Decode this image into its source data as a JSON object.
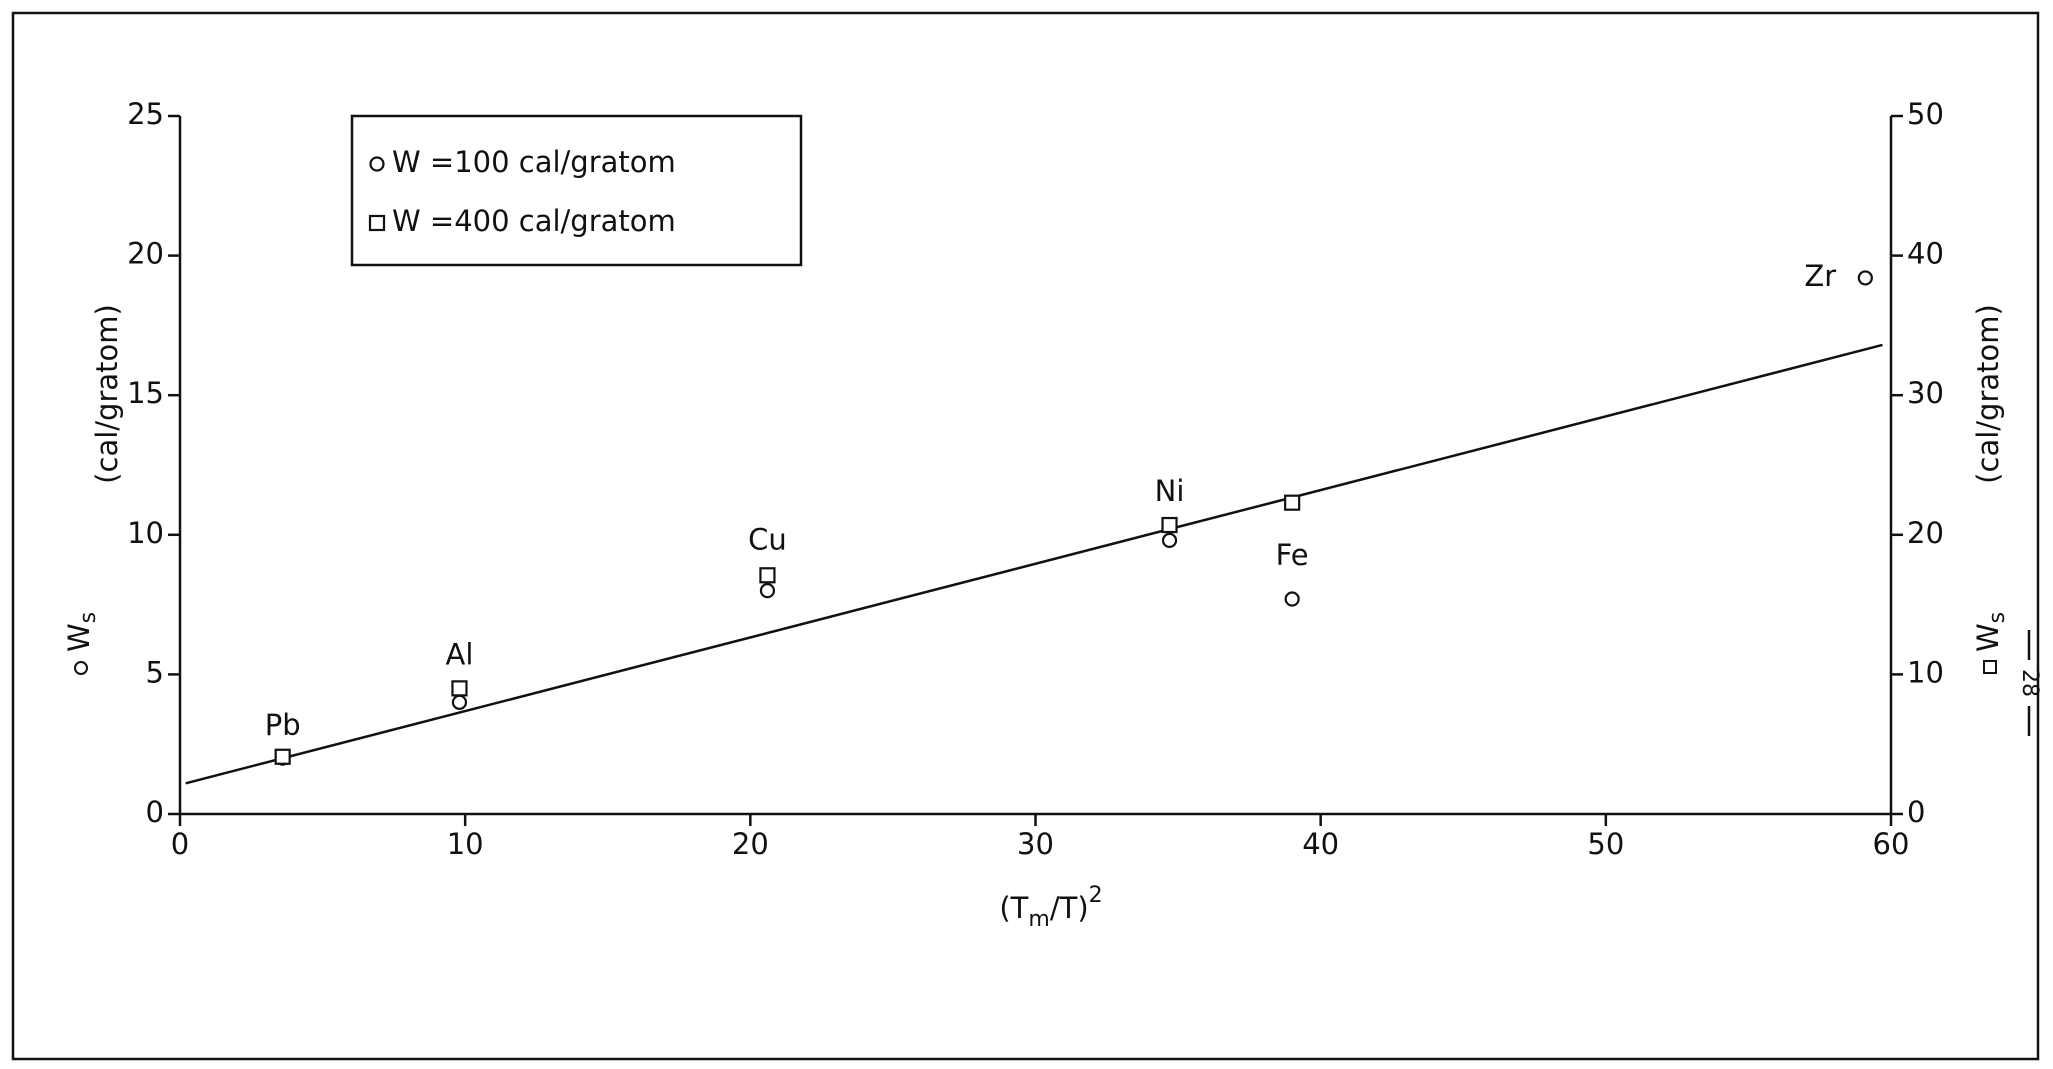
{
  "chart_data": {
    "type": "scatter",
    "x": [
      3.6,
      9.8,
      20.6,
      34.7,
      39.0,
      59.1
    ],
    "point_labels": [
      "Pb",
      "Al",
      "Cu",
      "Ni",
      "Fe",
      "Zr"
    ],
    "series": [
      {
        "name": "W =100 cal/gratom",
        "marker": "circle",
        "color": "#111111",
        "values": [
          2.0,
          4.0,
          8.0,
          9.8,
          7.7,
          19.2
        ]
      },
      {
        "name": "W =400 cal/gratom",
        "marker": "square",
        "axis": "y2",
        "color": "#111111",
        "values": [
          4.1,
          9.0,
          17.1,
          20.7,
          22.3,
          null
        ]
      }
    ],
    "fit_line": {
      "x": [
        0.2,
        59.7
      ],
      "values": [
        1.1,
        16.8
      ]
    },
    "xlim": [
      0,
      60
    ],
    "xticks": [
      0,
      10,
      20,
      30,
      40,
      50,
      60
    ],
    "ylim": [
      0,
      25
    ],
    "yticks": [
      0,
      5,
      10,
      15,
      20,
      25
    ],
    "y2lim": [
      0,
      50
    ],
    "y2ticks": [
      0,
      10,
      20,
      30,
      40,
      50
    ],
    "xlabel": {
      "text": "(T",
      "sub": "m",
      "text2": "/T)",
      "sup": "2"
    },
    "ylabel": "(cal/gratom)",
    "ylabel_symbol": "W",
    "ylabel_subscript": "s",
    "y2label": "(cal/gratom)",
    "y2label_symbol": "W",
    "y2label_subscript": "s",
    "page_number": "28"
  }
}
